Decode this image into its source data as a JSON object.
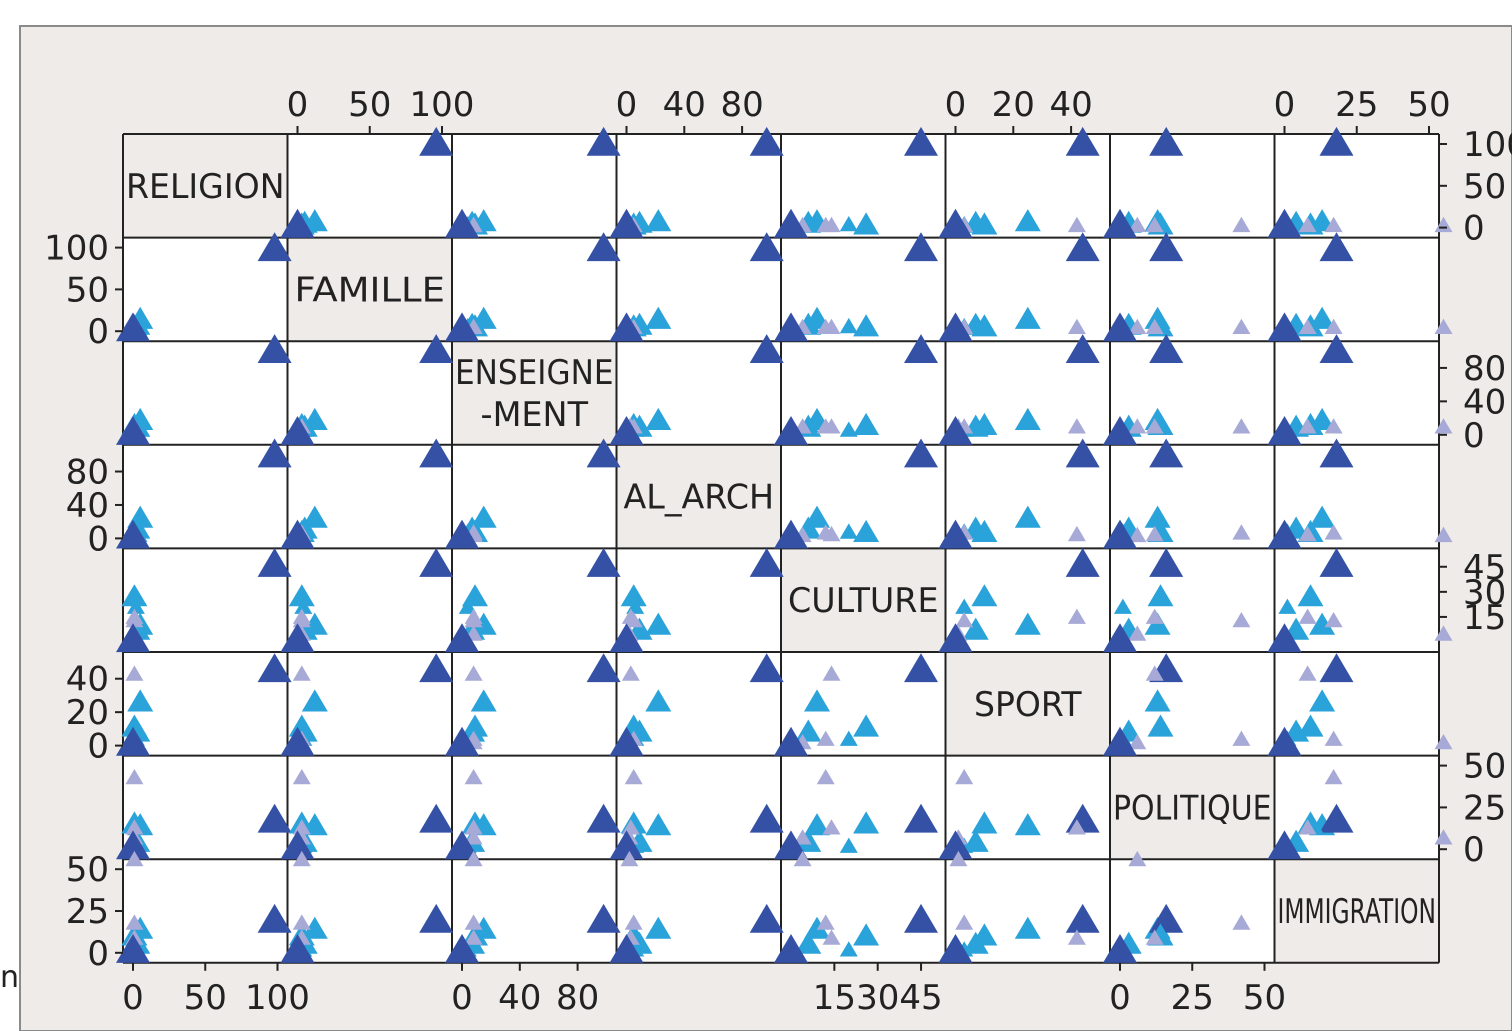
{
  "chart_data": {
    "type": "scatter",
    "chart_kind": "scatterplot-matrix",
    "grid": true,
    "marker": "triangle",
    "colors": {
      "frame_background": "#efebe8",
      "cell_background": "#ffffff",
      "diagonal_background": "#efebe8",
      "pale": "#a7aad6",
      "light": "#2aa2da",
      "dark": "#3451a6",
      "axis": "#222222"
    },
    "variables": [
      {
        "name": "RELIGION",
        "label": "RELIGION",
        "range": [
          0,
          100
        ],
        "ticks": [
          "0",
          "50",
          "100"
        ]
      },
      {
        "name": "FAMILLE",
        "label": "FAMILLE",
        "range": [
          0,
          100
        ],
        "ticks": [
          "0",
          "50",
          "100"
        ]
      },
      {
        "name": "ENSEIGNEMENT",
        "label": "ENSEIGNE\n-MENT",
        "range": [
          0,
          100
        ],
        "ticks": [
          "0",
          "40",
          "80"
        ]
      },
      {
        "name": "AL_ARCH",
        "label": "AL_ARCH",
        "range": [
          0,
          100
        ],
        "ticks": [
          "0",
          "40",
          "80"
        ]
      },
      {
        "name": "CULTURE",
        "label": "CULTURE",
        "range": [
          0,
          50
        ],
        "ticks": [
          "15",
          "30",
          "45"
        ]
      },
      {
        "name": "SPORT",
        "label": "SPORT",
        "range": [
          0,
          50
        ],
        "ticks": [
          "0",
          "20",
          "40"
        ]
      },
      {
        "name": "POLITIQUE",
        "label": "POLITIQUE",
        "range": [
          0,
          50
        ],
        "ticks": [
          "0",
          "25",
          "50"
        ]
      },
      {
        "name": "IMMIGRATION",
        "label": "IMMIGRATION",
        "range": [
          0,
          50
        ],
        "ticks": [
          "0",
          "25",
          "50"
        ]
      }
    ],
    "observations": [
      {
        "values": [
          2,
          4,
          4,
          6,
          20,
          3,
          1,
          1
        ],
        "shade": "light",
        "size": "small"
      },
      {
        "values": [
          3,
          5,
          7,
          9,
          6,
          7,
          3,
          4
        ],
        "shade": "light",
        "size": "medium"
      },
      {
        "values": [
          5,
          12,
          15,
          22,
          9,
          25,
          13,
          13
        ],
        "shade": "light",
        "size": "medium"
      },
      {
        "values": [
          98,
          96,
          98,
          97,
          45,
          44,
          16,
          18
        ],
        "shade": "dark",
        "size": "large"
      },
      {
        "values": [
          1,
          3,
          9,
          5,
          26,
          10,
          14,
          9
        ],
        "shade": "light",
        "size": "medium"
      },
      {
        "values": [
          1,
          3,
          8,
          5,
          12,
          3,
          42,
          17
        ],
        "shade": "pale",
        "size": "small"
      },
      {
        "values": [
          1,
          3,
          8,
          3,
          14,
          42,
          12,
          8
        ],
        "shade": "pale",
        "size": "small"
      },
      {
        "values": [
          1,
          3,
          8,
          2,
          4,
          1,
          6,
          55
        ],
        "shade": "pale",
        "size": "small"
      },
      {
        "values": [
          0,
          0,
          0,
          0,
          0,
          0,
          0,
          0
        ],
        "shade": "dark",
        "size": "large"
      }
    ]
  },
  "annotations": {
    "side_mark": "n"
  }
}
